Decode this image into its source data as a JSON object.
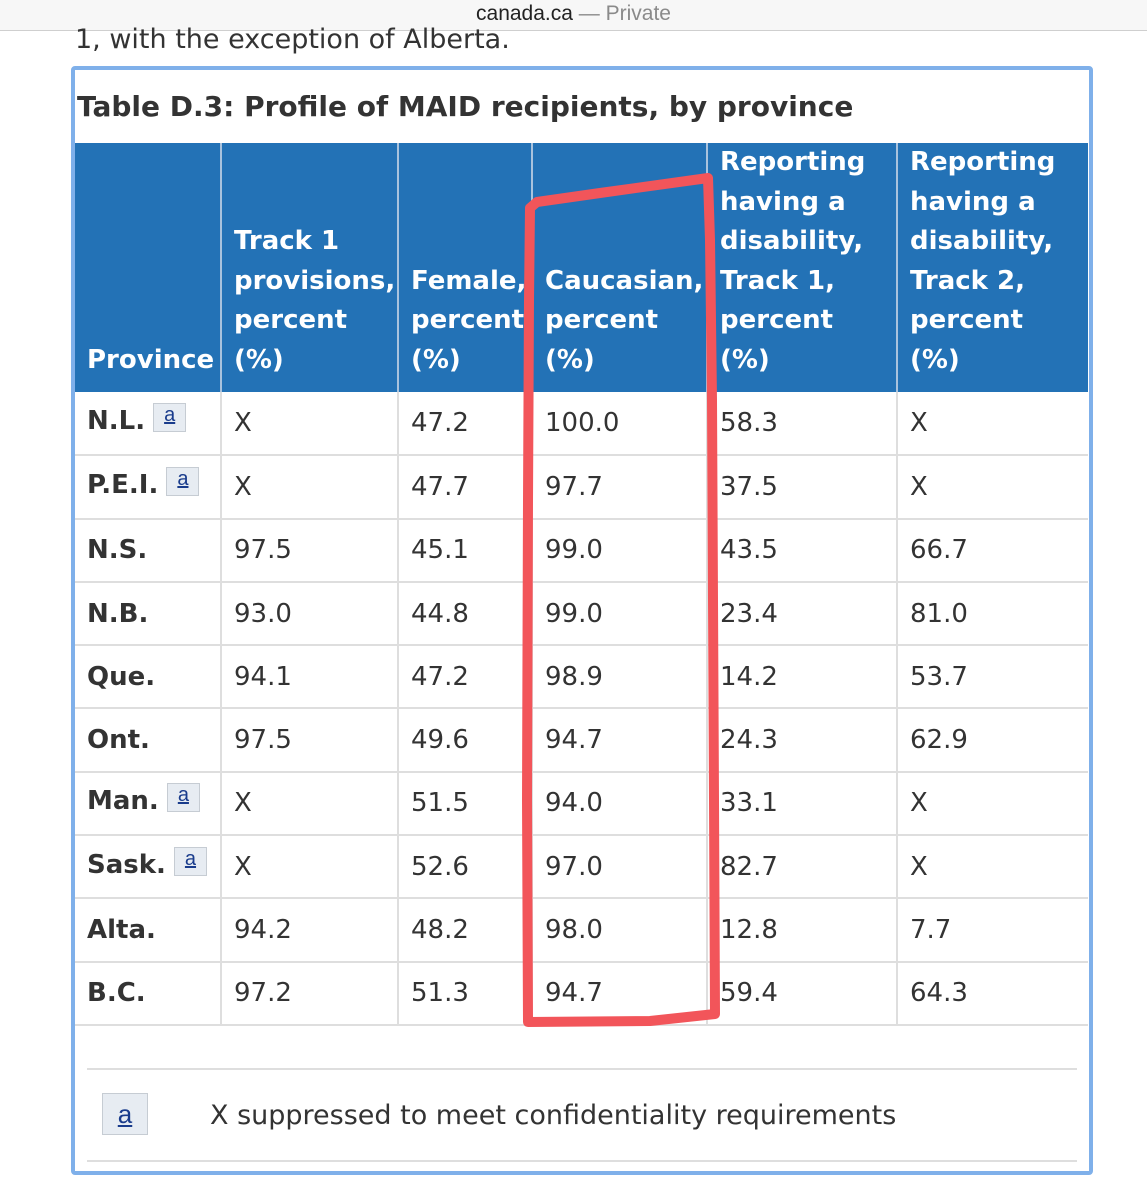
{
  "browser": {
    "domain": "canada.ca",
    "separator": "—",
    "mode": "Private"
  },
  "previous_text": "1, with the exception of Alberta.",
  "table": {
    "caption": "Table D.3: Profile of MAID recipients, by province",
    "headers": [
      "Province",
      "Track 1 provisions, percent (%)",
      "Female, percent (%)",
      "Caucasian, percent (%)",
      "Reporting having a disability, Track 1, percent (%)",
      "Reporting having a disability, Track 2, percent (%)"
    ],
    "rows": [
      {
        "province": "N.L.",
        "footnote": "a",
        "cells": [
          "X",
          "47.2",
          "100.0",
          "58.3",
          "X"
        ]
      },
      {
        "province": "P.E.I.",
        "footnote": "a",
        "cells": [
          "X",
          "47.7",
          "97.7",
          "37.5",
          "X"
        ]
      },
      {
        "province": "N.S.",
        "footnote": "",
        "cells": [
          "97.5",
          "45.1",
          "99.0",
          "43.5",
          "66.7"
        ]
      },
      {
        "province": "N.B.",
        "footnote": "",
        "cells": [
          "93.0",
          "44.8",
          "99.0",
          "23.4",
          "81.0"
        ]
      },
      {
        "province": "Que.",
        "footnote": "",
        "cells": [
          "94.1",
          "47.2",
          "98.9",
          "14.2",
          "53.7"
        ]
      },
      {
        "province": "Ont.",
        "footnote": "",
        "cells": [
          "97.5",
          "49.6",
          "94.7",
          "24.3",
          "62.9"
        ]
      },
      {
        "province": "Man.",
        "footnote": "a",
        "cells": [
          "X",
          "51.5",
          "94.0",
          "33.1",
          "X"
        ]
      },
      {
        "province": "Sask.",
        "footnote": "a",
        "cells": [
          "X",
          "52.6",
          "97.0",
          "82.7",
          "X"
        ]
      },
      {
        "province": "Alta.",
        "footnote": "",
        "cells": [
          "94.2",
          "48.2",
          "98.0",
          "12.8",
          "7.7"
        ]
      },
      {
        "province": "B.C.",
        "footnote": "",
        "cells": [
          "97.2",
          "51.3",
          "94.7",
          "59.4",
          "64.3"
        ]
      }
    ]
  },
  "notes": {
    "key": "a",
    "text": "X suppressed to meet confidentiality requirements"
  },
  "colors": {
    "header_bg": "#2372b6",
    "panel_border": "#7fb0ea",
    "annotation": "#f2555a"
  }
}
